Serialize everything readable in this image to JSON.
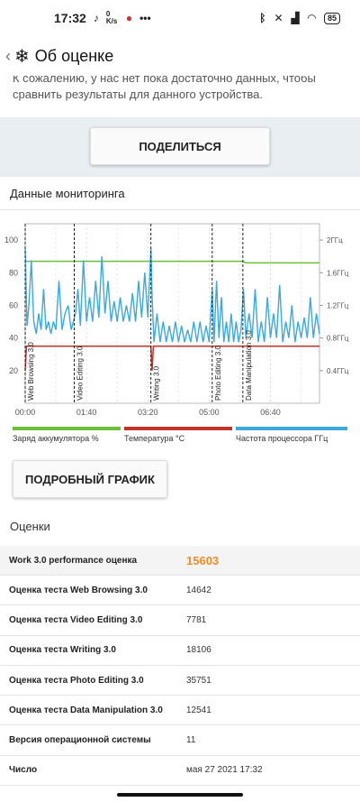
{
  "status_bar": {
    "time": "17:32",
    "net_speed": "0 K/s",
    "battery": "85"
  },
  "app_bar": {
    "back_icon": "back-arrow-icon",
    "title": "Об оценке"
  },
  "message": "К сожалению, у нас нет пока достаточно данных, чтобы сравнить результаты для данного устройства.",
  "share_button": "ПОДЕЛИТЬСЯ",
  "monitoring": {
    "title": "Данные мониторинга",
    "detail_button": "ПОДРОБНЫЙ ГРАФИК"
  },
  "chart_data": {
    "type": "line",
    "x_ticks": [
      "00:00",
      "01:40",
      "03:20",
      "05:00",
      "06:40"
    ],
    "y_left_ticks": [
      "20",
      "40",
      "60",
      "80",
      "100"
    ],
    "y_right_ticks": [
      "0.4ГГц",
      "0.8ГГц",
      "1.2ГГц",
      "1.6ГГц",
      "2ГГц"
    ],
    "y_left_range": [
      0,
      110
    ],
    "y_right_range": [
      0,
      2.2
    ],
    "x_range_seconds": [
      0,
      480
    ],
    "markers": [
      {
        "label": "Web Browsing 3.0",
        "t": 0
      },
      {
        "label": "Video Editing 3.0",
        "t": 80
      },
      {
        "label": "Writing 3.0",
        "t": 205
      },
      {
        "label": "Photo Editing 3.0",
        "t": 305
      },
      {
        "label": "Data Manipulation 3.0",
        "t": 355
      }
    ],
    "series": [
      {
        "name": "Заряд аккумулятора %",
        "color": "#6cbf3a",
        "axis": "left",
        "points": [
          [
            0,
            87
          ],
          [
            355,
            87
          ],
          [
            360,
            86
          ],
          [
            480,
            86
          ]
        ]
      },
      {
        "name": "Температура °C",
        "color": "#c0332b",
        "axis": "left",
        "points": [
          [
            0,
            20
          ],
          [
            2,
            35
          ],
          [
            205,
            35
          ],
          [
            207,
            20
          ],
          [
            209,
            35
          ],
          [
            480,
            35
          ]
        ]
      },
      {
        "name": "Частота процессора ГГц",
        "color": "#3ba9dc",
        "axis": "right",
        "points": [
          [
            0,
            1.9
          ],
          [
            3,
            0.95
          ],
          [
            6,
            1.2
          ],
          [
            10,
            1.75
          ],
          [
            14,
            1.0
          ],
          [
            18,
            0.85
          ],
          [
            22,
            1.1
          ],
          [
            26,
            0.9
          ],
          [
            30,
            1.4
          ],
          [
            34,
            0.9
          ],
          [
            38,
            1.0
          ],
          [
            42,
            0.85
          ],
          [
            46,
            1.0
          ],
          [
            50,
            0.9
          ],
          [
            55,
            1.5
          ],
          [
            60,
            0.9
          ],
          [
            65,
            1.1
          ],
          [
            70,
            1.2
          ],
          [
            75,
            0.9
          ],
          [
            82,
            1.1
          ],
          [
            86,
            1.4
          ],
          [
            90,
            0.95
          ],
          [
            95,
            1.75
          ],
          [
            100,
            1.0
          ],
          [
            105,
            1.3
          ],
          [
            110,
            1.0
          ],
          [
            115,
            1.5
          ],
          [
            120,
            1.05
          ],
          [
            125,
            1.8
          ],
          [
            130,
            1.1
          ],
          [
            135,
            1.5
          ],
          [
            140,
            1.0
          ],
          [
            145,
            1.25
          ],
          [
            150,
            1.0
          ],
          [
            155,
            1.3
          ],
          [
            160,
            1.0
          ],
          [
            165,
            1.2
          ],
          [
            170,
            1.0
          ],
          [
            175,
            1.35
          ],
          [
            180,
            1.0
          ],
          [
            185,
            1.5
          ],
          [
            190,
            1.05
          ],
          [
            195,
            1.6
          ],
          [
            200,
            1.05
          ],
          [
            205,
            1.9
          ],
          [
            207,
            1.3
          ],
          [
            210,
            0.75
          ],
          [
            215,
            1.1
          ],
          [
            220,
            0.75
          ],
          [
            225,
            1.0
          ],
          [
            230,
            0.75
          ],
          [
            235,
            0.95
          ],
          [
            240,
            0.75
          ],
          [
            245,
            1.0
          ],
          [
            250,
            0.75
          ],
          [
            255,
            0.95
          ],
          [
            260,
            0.75
          ],
          [
            265,
            0.9
          ],
          [
            270,
            0.75
          ],
          [
            275,
            1.0
          ],
          [
            280,
            0.75
          ],
          [
            285,
            1.0
          ],
          [
            290,
            0.75
          ],
          [
            295,
            0.95
          ],
          [
            300,
            0.75
          ],
          [
            305,
            1.4
          ],
          [
            308,
            0.75
          ],
          [
            312,
            1.5
          ],
          [
            316,
            0.8
          ],
          [
            320,
            1.3
          ],
          [
            324,
            0.75
          ],
          [
            328,
            1.0
          ],
          [
            332,
            0.75
          ],
          [
            336,
            1.1
          ],
          [
            340,
            0.75
          ],
          [
            344,
            1.0
          ],
          [
            348,
            0.75
          ],
          [
            352,
            0.9
          ],
          [
            356,
            1.4
          ],
          [
            360,
            0.8
          ],
          [
            365,
            1.1
          ],
          [
            370,
            0.8
          ],
          [
            375,
            1.4
          ],
          [
            380,
            0.75
          ],
          [
            385,
            1.0
          ],
          [
            390,
            0.75
          ],
          [
            395,
            1.3
          ],
          [
            400,
            0.8
          ],
          [
            405,
            1.1
          ],
          [
            410,
            0.8
          ],
          [
            415,
            1.45
          ],
          [
            420,
            0.75
          ],
          [
            425,
            1.0
          ],
          [
            430,
            0.8
          ],
          [
            435,
            1.2
          ],
          [
            440,
            0.75
          ],
          [
            445,
            1.0
          ],
          [
            450,
            0.8
          ],
          [
            455,
            1.05
          ],
          [
            460,
            0.8
          ],
          [
            465,
            1.3
          ],
          [
            470,
            0.8
          ],
          [
            475,
            1.1
          ],
          [
            480,
            0.85
          ]
        ]
      }
    ]
  },
  "legend": [
    {
      "label": "Заряд аккумулятора %",
      "color": "#6cbf3a"
    },
    {
      "label": "Температура °C",
      "color": "#c0332b"
    },
    {
      "label": "Частота процессора ГГц",
      "color": "#3ba9dc"
    }
  ],
  "scores": {
    "title": "Оценки",
    "rows": [
      {
        "label": "Work 3.0 performance оценка",
        "value": "15603"
      },
      {
        "label": "Оценка теста Web Browsing 3.0",
        "value": "14642"
      },
      {
        "label": "Оценка теста Video Editing 3.0",
        "value": "7781"
      },
      {
        "label": "Оценка теста Writing 3.0",
        "value": "18106"
      },
      {
        "label": "Оценка теста Photo Editing 3.0",
        "value": "35751"
      },
      {
        "label": "Оценка теста Data Manipulation 3.0",
        "value": "12541"
      },
      {
        "label": "Версия операционной системы",
        "value": "11"
      },
      {
        "label": "Число",
        "value": "мая 27 2021 17:32"
      }
    ]
  }
}
